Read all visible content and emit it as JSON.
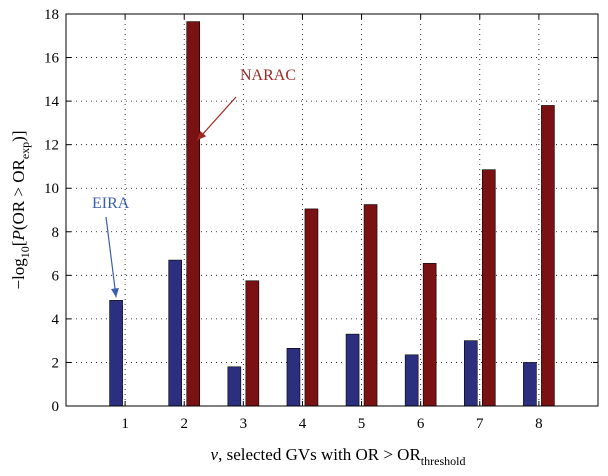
{
  "chart_data": {
    "type": "bar",
    "categories": [
      "1",
      "2",
      "3",
      "4",
      "5",
      "6",
      "7",
      "8"
    ],
    "series": [
      {
        "name": "EIRA",
        "values": [
          4.85,
          6.7,
          1.8,
          2.65,
          3.3,
          2.35,
          3.0,
          2.0
        ]
      },
      {
        "name": "NARAC",
        "values": [
          null,
          17.65,
          5.75,
          9.05,
          9.25,
          6.55,
          10.85,
          13.8
        ]
      }
    ],
    "ylim": [
      0,
      18
    ],
    "yticks": [
      0,
      2,
      4,
      6,
      8,
      10,
      12,
      14,
      16,
      18
    ],
    "grid": "dotted",
    "ylabel": {
      "prefix": "−log",
      "sub": "10",
      "bracket_open": "[",
      "p": "P",
      "mid": "(OR > OR",
      "sub2": "exp",
      "close": ")]"
    },
    "xlabel": {
      "nu": "ν",
      "text": ", selected GVs with OR > OR",
      "sub": "threshold"
    },
    "annotations": [
      {
        "text": "NARAC",
        "series": "NARAC",
        "category": "2"
      },
      {
        "text": "EIRA",
        "series": "EIRA",
        "category": "1"
      }
    ],
    "colors": {
      "EIRA": "#2b2f7e",
      "NARAC": "#7a1214",
      "NARAC_label": "#9b2a22",
      "EIRA_label": "#3b5fb0"
    }
  }
}
